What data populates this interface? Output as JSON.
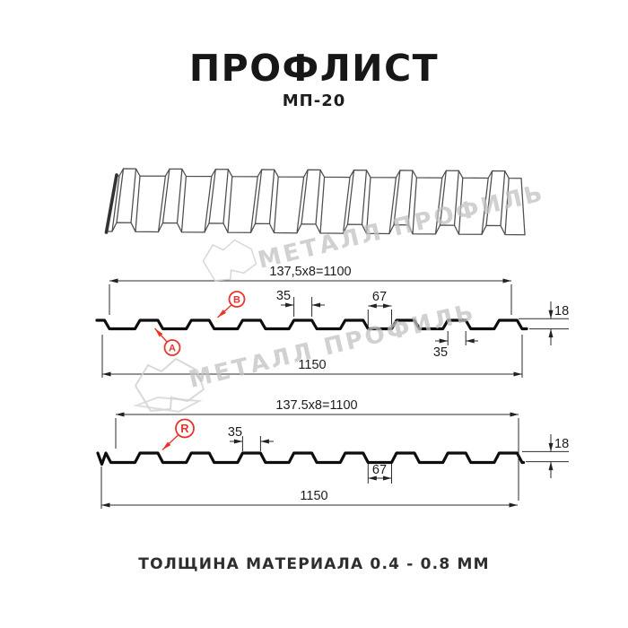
{
  "header": {
    "title": "ПРОФЛИСТ",
    "subtitle": "МП-20"
  },
  "watermark": {
    "text": "МЕТАЛЛ ПРОФИЛЬ"
  },
  "diagram1": {
    "top_dim": "137,5x8=1100",
    "bottom_dim": "1150",
    "dim_crest_width": "35",
    "dim_valley_width": "67",
    "dim_height": "18",
    "dim_rib_base": "35",
    "label_a": "A",
    "label_b": "B"
  },
  "diagram2": {
    "top_dim": "137.5x8=1100",
    "bottom_dim": "1150",
    "dim_crest_width": "35",
    "dim_valley_width": "67",
    "dim_height": "18",
    "label_r": "R"
  },
  "footer": {
    "caption": "ТОЛЩИНА МАТЕРИАЛА 0.4 - 0.8 ММ"
  },
  "colors": {
    "accent_red": "#e8352b",
    "line_black": "#111111",
    "watermark_gray": "#c2c2c2"
  }
}
